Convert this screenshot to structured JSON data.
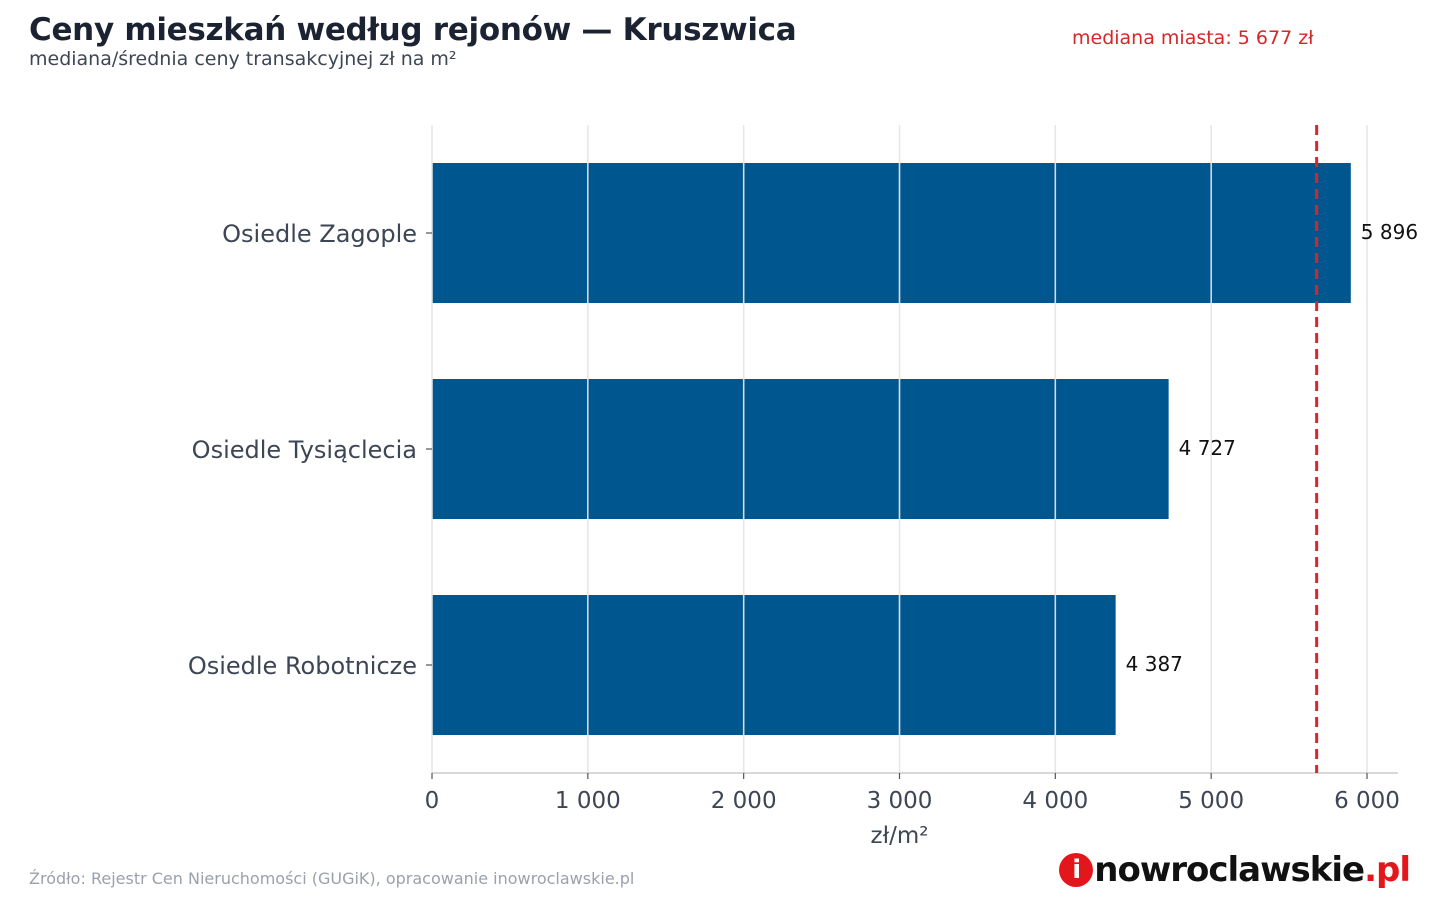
{
  "chart_data": {
    "type": "bar",
    "orientation": "horizontal",
    "title": "Ceny mieszkań według rejonów — Kruszwica",
    "subtitle": "mediana/średnia ceny transakcyjnej zł na m²",
    "categories": [
      "Osiedle Zagople",
      "Osiedle Tysiąclecia",
      "Osiedle Robotnicze"
    ],
    "values": [
      5896,
      4727,
      4387
    ],
    "value_labels": [
      "5 896",
      "4 727",
      "4 387"
    ],
    "xlabel": "zł/m²",
    "ylabel": "",
    "xlim": [
      0,
      6200
    ],
    "x_ticks": [
      0,
      1000,
      2000,
      3000,
      4000,
      5000,
      6000
    ],
    "x_tick_labels": [
      "0",
      "1 000",
      "2 000",
      "3 000",
      "4 000",
      "5 000",
      "6 000"
    ],
    "reference_line": {
      "value": 5677,
      "label": "mediana miasta: 5 677 zł",
      "color": "#d62728",
      "style": "dashed"
    },
    "bar_color": "#00568f",
    "grid": "vertical"
  },
  "footer": {
    "source": "Źródło: Rejestr Cen Nieruchomości (GUGiK), opracowanie inowroclawskie.pl"
  },
  "logo": {
    "icon_letter": "i",
    "main": "nowroclawskie",
    "tld": ".pl"
  }
}
